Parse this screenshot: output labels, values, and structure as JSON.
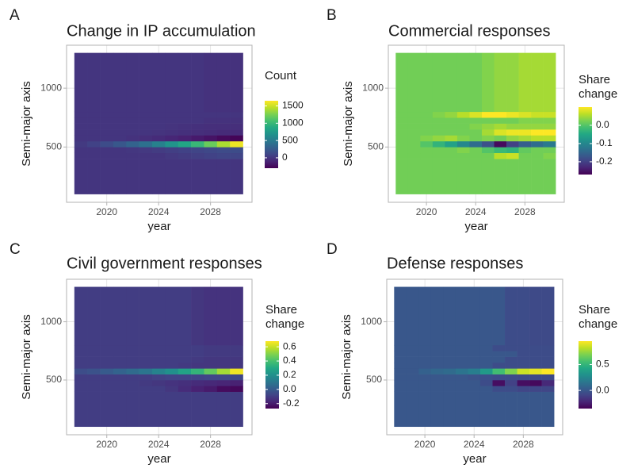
{
  "chart_data": [
    {
      "type": "heatmap",
      "tag": "A",
      "title": "Change in IP accumulation",
      "xlabel": "year",
      "ylabel": "Semi-major axis",
      "legend_title": [
        "Count"
      ],
      "colormap": "viridis",
      "x": [
        2018,
        2019,
        2020,
        2021,
        2022,
        2023,
        2024,
        2025,
        2026,
        2027,
        2028,
        2029,
        2030
      ],
      "y_edges": [
        100,
        400,
        450,
        500,
        550,
        600,
        650,
        700,
        750,
        800,
        1300
      ],
      "z": [
        [
          0,
          0,
          0,
          0,
          0,
          0,
          0,
          0,
          0,
          0,
          0,
          0,
          0
        ],
        [
          0,
          0,
          0,
          0,
          0,
          0,
          0,
          20,
          40,
          60,
          80,
          100,
          100
        ],
        [
          0,
          0,
          0,
          0,
          10,
          20,
          40,
          60,
          80,
          100,
          120,
          140,
          150
        ],
        [
          30,
          80,
          150,
          230,
          320,
          420,
          550,
          700,
          850,
          1000,
          1200,
          1400,
          1600
        ],
        [
          0,
          0,
          0,
          0,
          -20,
          -40,
          -60,
          -90,
          -120,
          -160,
          -200,
          -250,
          -280
        ],
        [
          0,
          0,
          0,
          0,
          0,
          0,
          -10,
          -20,
          -30,
          -40,
          -50,
          -60,
          -60
        ],
        [
          0,
          0,
          0,
          0,
          0,
          0,
          0,
          -10,
          -20,
          -30,
          -40,
          -40,
          -40
        ],
        [
          0,
          0,
          0,
          0,
          0,
          0,
          0,
          0,
          0,
          0,
          -20,
          -20,
          -20
        ],
        [
          0,
          0,
          0,
          0,
          0,
          0,
          0,
          0,
          0,
          0,
          0,
          0,
          0
        ],
        [
          0,
          0,
          0,
          0,
          0,
          0,
          0,
          0,
          0,
          0,
          -20,
          -20,
          -20
        ]
      ],
      "xlim": [
        2016.9,
        2031.2
      ],
      "ylim": [
        30,
        1365
      ],
      "xticks": [
        2020,
        2024,
        2028
      ],
      "yticks": [
        500,
        1000
      ],
      "clim": [
        -300,
        1650
      ],
      "cticks": [
        0,
        500,
        1000,
        1500
      ],
      "grid": true
    },
    {
      "type": "heatmap",
      "tag": "B",
      "title": "Commercial responses",
      "xlabel": "year",
      "ylabel": "Semi-major axis",
      "legend_title": [
        "Share",
        "change"
      ],
      "colormap": "viridis",
      "x": [
        2018,
        2019,
        2020,
        2021,
        2022,
        2023,
        2024,
        2025,
        2026,
        2027,
        2028,
        2029,
        2030
      ],
      "y_edges": [
        100,
        400,
        450,
        500,
        550,
        600,
        650,
        700,
        750,
        800,
        1300
      ],
      "z": [
        [
          0.02,
          0.02,
          0.02,
          0.02,
          0.02,
          0.02,
          0.02,
          0.02,
          0.02,
          0.02,
          0.02,
          0.02,
          0.02
        ],
        [
          0.02,
          0.02,
          0.02,
          0.02,
          0.02,
          0.02,
          0.02,
          0.02,
          0.06,
          0.07,
          0.02,
          0.02,
          0.03
        ],
        [
          0.02,
          0.02,
          0.02,
          0.02,
          0.02,
          0.03,
          0.02,
          0,
          -0.02,
          -0.03,
          0.01,
          0.02,
          0.02
        ],
        [
          0.02,
          0.02,
          0,
          -0.03,
          -0.06,
          -0.1,
          -0.14,
          -0.18,
          -0.26,
          -0.2,
          -0.16,
          -0.14,
          -0.12
        ],
        [
          0.02,
          0.02,
          0.03,
          0.04,
          0.05,
          0.03,
          0.02,
          0.03,
          0.02,
          0.04,
          0.05,
          0.06,
          0.06
        ],
        [
          0.02,
          0.02,
          0.02,
          0.02,
          0.02,
          0.02,
          0.02,
          0.05,
          0.08,
          0.09,
          0.09,
          0.1,
          0.1
        ],
        [
          0.02,
          0.02,
          0.02,
          0.02,
          0.02,
          0.02,
          0.03,
          0.04,
          0.05,
          0.04,
          0.04,
          0.04,
          0.04
        ],
        [
          0.02,
          0.02,
          0.02,
          0.02,
          0.02,
          0.02,
          0.02,
          0.02,
          0.02,
          0.02,
          0.03,
          0.03,
          0.03
        ],
        [
          0.02,
          0.02,
          0.02,
          0.03,
          0.04,
          0.06,
          0.08,
          0.1,
          0.1,
          0.09,
          0.08,
          0.07,
          0.07
        ],
        [
          0.02,
          0.02,
          0.02,
          0.02,
          0.02,
          0.02,
          0.02,
          0.03,
          0.04,
          0.04,
          0.05,
          0.05,
          0.05
        ]
      ],
      "xlim": [
        2016.9,
        2031.2
      ],
      "ylim": [
        30,
        1365
      ],
      "xticks": [
        2020,
        2024,
        2028
      ],
      "yticks": [
        500,
        1000
      ],
      "clim": [
        -0.27,
        0.1
      ],
      "cticks": [
        -0.2,
        -0.1,
        {
          "value": 0,
          "label": "0.0"
        }
      ],
      "grid": true
    },
    {
      "type": "heatmap",
      "tag": "C",
      "title": "Civil government responses",
      "xlabel": "year",
      "ylabel": "Semi-major axis",
      "legend_title": [
        "Share",
        "change"
      ],
      "colormap": "viridis",
      "x": [
        2018,
        2019,
        2020,
        2021,
        2022,
        2023,
        2024,
        2025,
        2026,
        2027,
        2028,
        2029,
        2030
      ],
      "y_edges": [
        100,
        400,
        450,
        500,
        550,
        600,
        650,
        700,
        750,
        800,
        1300
      ],
      "z": [
        [
          -0.1,
          -0.1,
          -0.1,
          -0.1,
          -0.1,
          -0.1,
          -0.1,
          -0.1,
          -0.1,
          -0.1,
          -0.1,
          -0.1,
          -0.1
        ],
        [
          -0.1,
          -0.1,
          -0.1,
          -0.1,
          -0.1,
          -0.1,
          -0.1,
          -0.12,
          -0.15,
          -0.18,
          -0.2,
          -0.24,
          -0.25
        ],
        [
          -0.1,
          -0.1,
          -0.1,
          -0.1,
          -0.1,
          -0.11,
          -0.12,
          -0.13,
          -0.14,
          -0.15,
          -0.16,
          -0.17,
          -0.18
        ],
        [
          -0.1,
          -0.1,
          -0.1,
          -0.1,
          -0.1,
          -0.1,
          -0.09,
          -0.08,
          -0.08,
          -0.08,
          -0.07,
          -0.07,
          -0.07
        ],
        [
          -0.05,
          -0.03,
          0,
          0.03,
          0.06,
          0.1,
          0.15,
          0.2,
          0.28,
          0.35,
          0.45,
          0.55,
          0.66
        ],
        [
          -0.1,
          -0.1,
          -0.1,
          -0.1,
          -0.1,
          -0.1,
          -0.1,
          -0.1,
          -0.11,
          -0.12,
          -0.12,
          -0.12,
          -0.12
        ],
        [
          -0.1,
          -0.1,
          -0.1,
          -0.1,
          -0.1,
          -0.1,
          -0.1,
          -0.1,
          -0.1,
          -0.11,
          -0.12,
          -0.12,
          -0.12
        ],
        [
          -0.1,
          -0.1,
          -0.1,
          -0.1,
          -0.1,
          -0.1,
          -0.1,
          -0.1,
          -0.1,
          -0.1,
          -0.11,
          -0.11,
          -0.11
        ],
        [
          -0.1,
          -0.1,
          -0.1,
          -0.1,
          -0.1,
          -0.1,
          -0.1,
          -0.1,
          -0.1,
          -0.1,
          -0.11,
          -0.11,
          -0.11
        ],
        [
          -0.1,
          -0.1,
          -0.1,
          -0.1,
          -0.1,
          -0.1,
          -0.1,
          -0.1,
          -0.1,
          -0.12,
          -0.13,
          -0.13,
          -0.13
        ]
      ],
      "xlim": [
        2016.9,
        2031.2
      ],
      "ylim": [
        30,
        1365
      ],
      "xticks": [
        2020,
        2024,
        2028
      ],
      "yticks": [
        500,
        1000
      ],
      "clim": [
        -0.27,
        0.68
      ],
      "cticks": [
        -0.2,
        {
          "value": 0,
          "label": "0.0"
        },
        0.2,
        0.4,
        0.6
      ],
      "grid": true
    },
    {
      "type": "heatmap",
      "tag": "D",
      "title": "Defense responses",
      "xlabel": "year",
      "ylabel": "Semi-major axis",
      "legend_title": [
        "Share",
        "change"
      ],
      "colormap": "viridis",
      "x": [
        2018,
        2019,
        2020,
        2021,
        2022,
        2023,
        2024,
        2025,
        2026,
        2027,
        2028,
        2029,
        2030
      ],
      "y_edges": [
        100,
        400,
        450,
        500,
        550,
        600,
        650,
        700,
        750,
        800,
        1300
      ],
      "z": [
        [
          0,
          0,
          0,
          0,
          0,
          0,
          0,
          0,
          0,
          0,
          0,
          0,
          0
        ],
        [
          0,
          0,
          0,
          0,
          0,
          0,
          0,
          0,
          -0.05,
          -0.05,
          -0.08,
          -0.08,
          -0.08
        ],
        [
          0,
          0,
          0,
          0,
          0,
          0,
          0,
          -0.05,
          -0.3,
          -0.1,
          -0.3,
          -0.32,
          -0.2
        ],
        [
          0,
          0,
          0,
          0,
          0,
          0,
          -0.02,
          -0.03,
          -0.05,
          -0.05,
          -0.06,
          -0.06,
          -0.06
        ],
        [
          0,
          0,
          0.05,
          0.08,
          0.1,
          0.15,
          0.2,
          0.35,
          0.55,
          0.7,
          0.85,
          0.9,
          0.95
        ],
        [
          0,
          0,
          0,
          0,
          0,
          0,
          0,
          0,
          -0.05,
          -0.05,
          -0.05,
          -0.05,
          -0.05
        ],
        [
          0,
          0,
          0,
          0,
          0,
          0,
          0,
          0,
          0,
          -0.05,
          -0.05,
          -0.05,
          -0.05
        ],
        [
          0,
          0,
          0,
          0,
          0,
          0,
          0,
          0,
          0,
          0,
          -0.05,
          -0.05,
          -0.05
        ],
        [
          0,
          0,
          0,
          0,
          0,
          0,
          0,
          0,
          -0.05,
          -0.05,
          -0.05,
          -0.05,
          -0.05
        ],
        [
          0,
          0,
          0,
          0,
          0,
          0,
          0,
          0,
          0,
          -0.05,
          -0.05,
          -0.06,
          -0.06
        ]
      ],
      "xlim": [
        2016.9,
        2031.2
      ],
      "ylim": [
        30,
        1365
      ],
      "xticks": [
        2020,
        2024,
        2028
      ],
      "yticks": [
        500,
        1000
      ],
      "clim": [
        -0.35,
        0.95
      ],
      "cticks": [
        {
          "value": 0,
          "label": "0.0"
        },
        0.5
      ],
      "grid": true
    }
  ]
}
